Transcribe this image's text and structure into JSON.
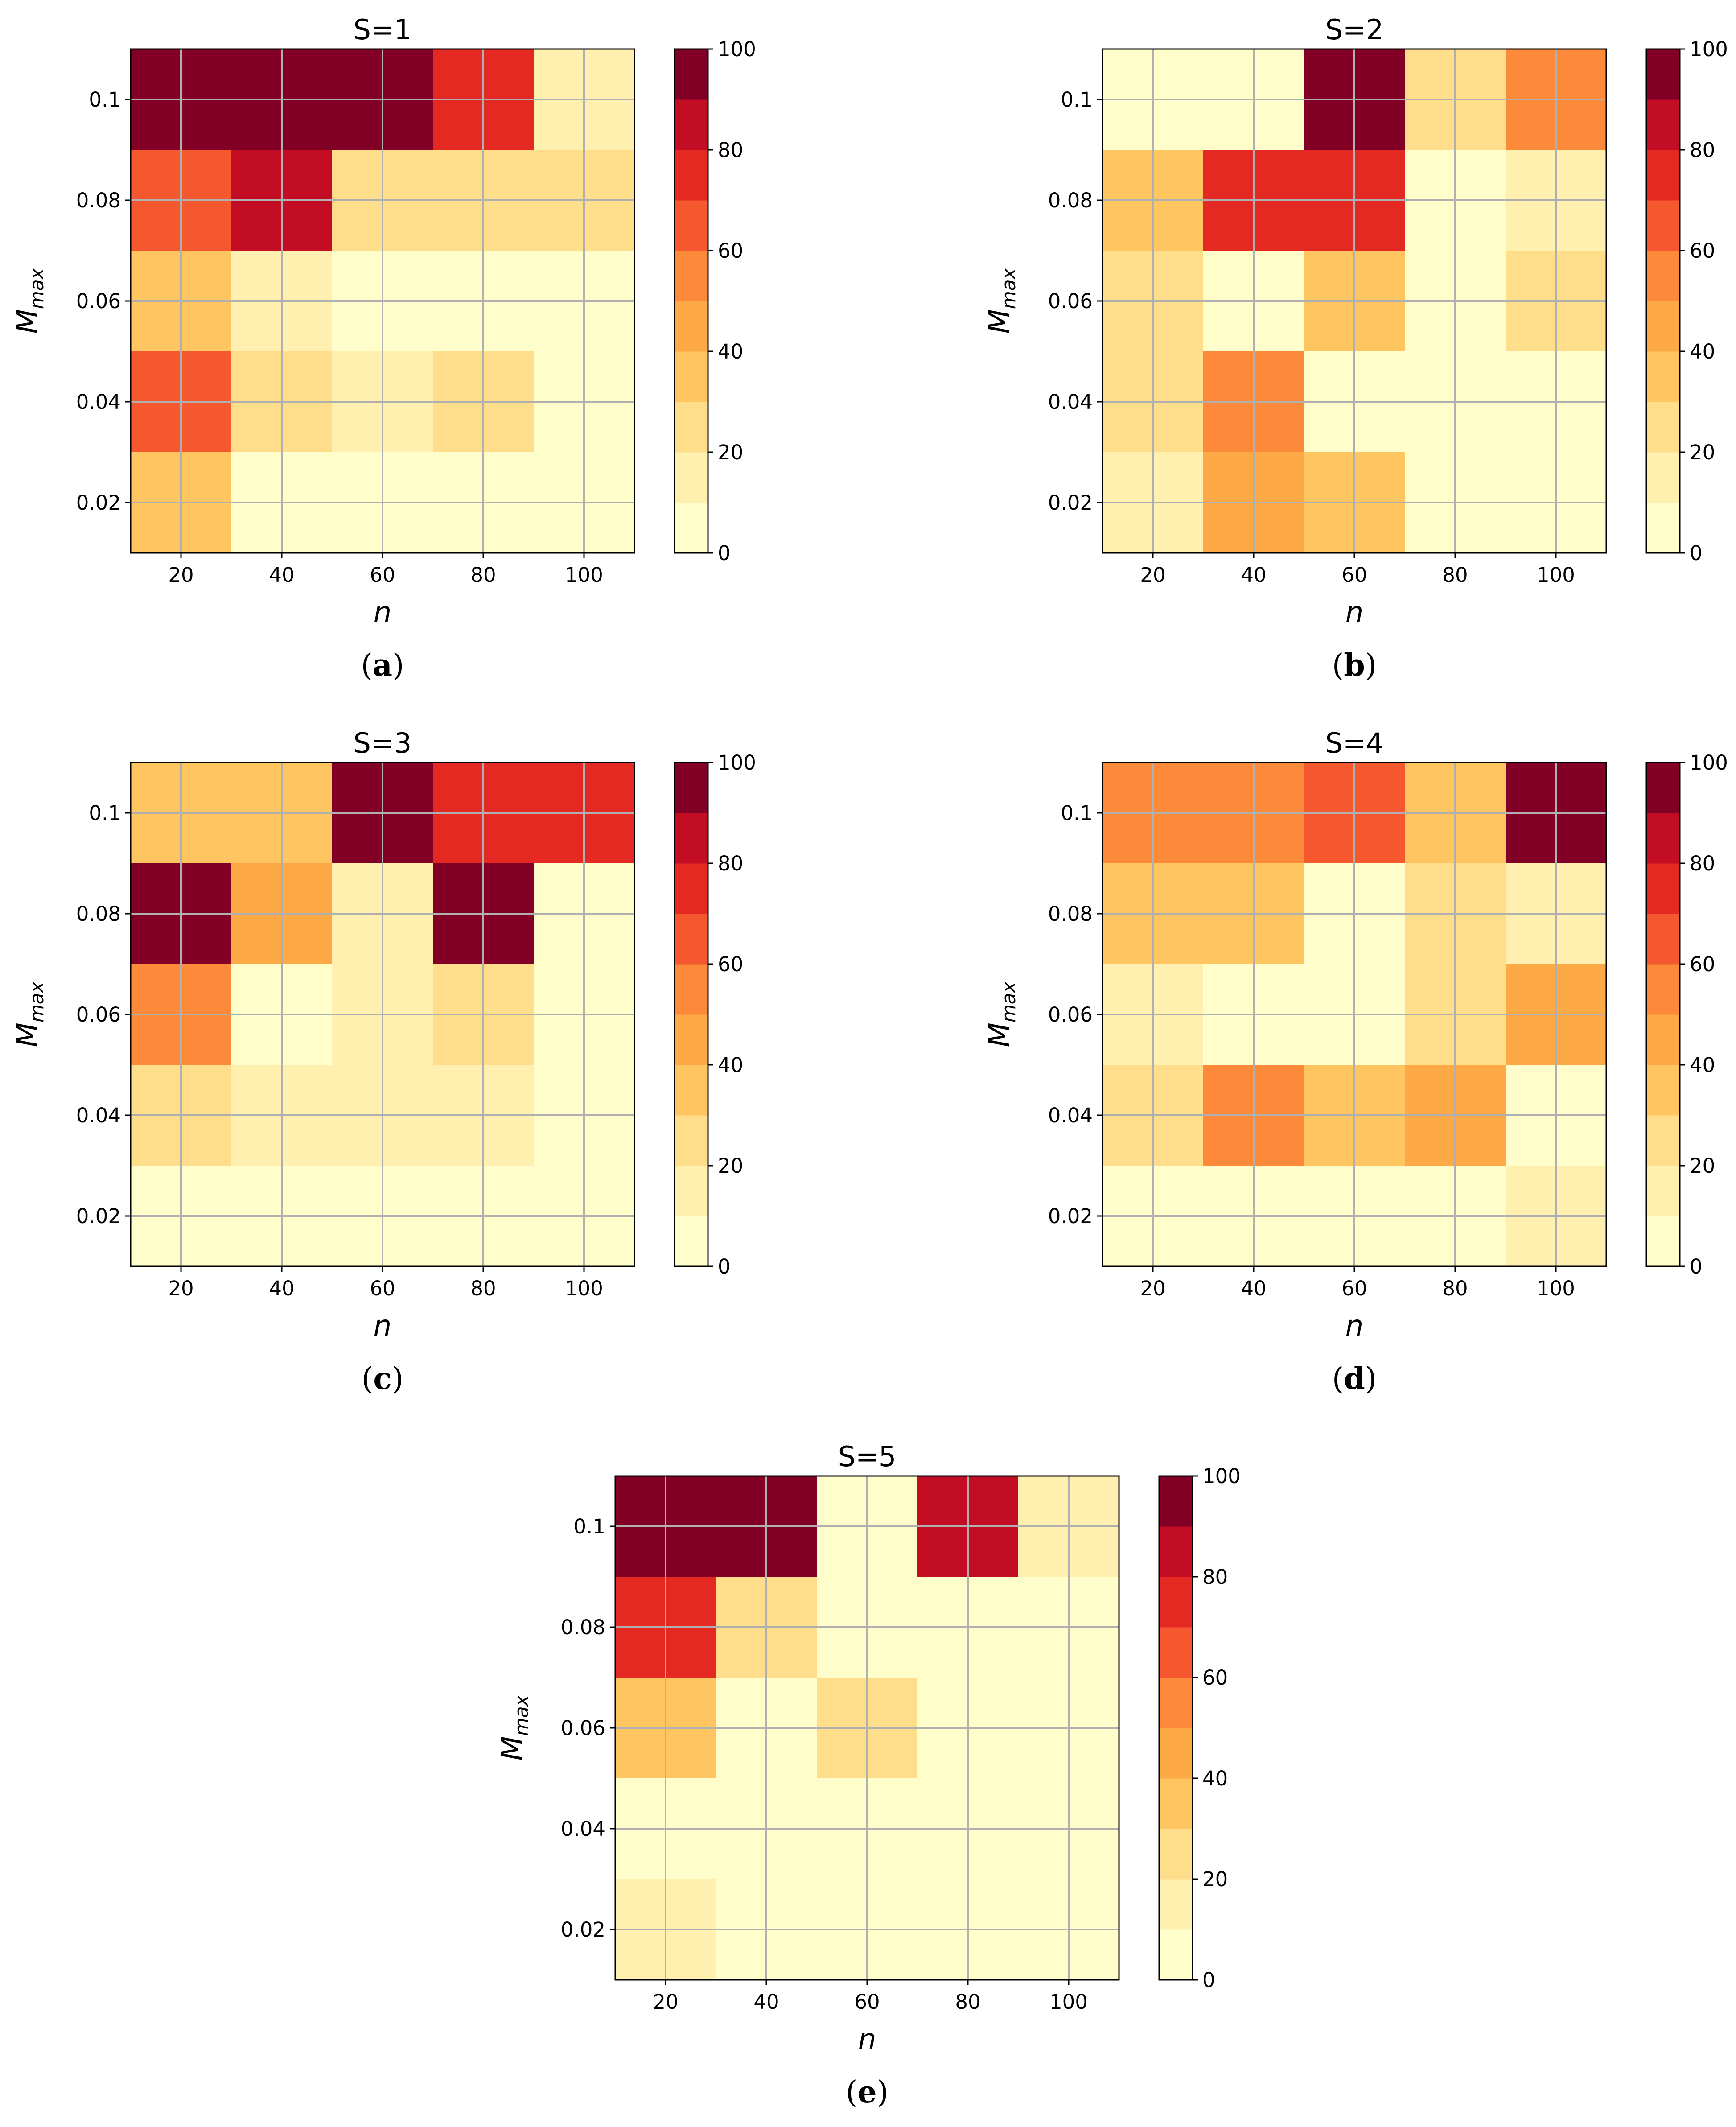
{
  "colormap": {
    "name": "YlOrRd",
    "levels": [
      0,
      10,
      20,
      30,
      40,
      50,
      60,
      70,
      80,
      90,
      100
    ],
    "colors": [
      "#fffecb",
      "#fff0b0",
      "#fedd8b",
      "#fec560",
      "#fdaa46",
      "#fc8a3a",
      "#f5582e",
      "#e32922",
      "#c20d25",
      "#820026"
    ]
  },
  "frame_color": "#000000",
  "grid_color": "#b0b0b0",
  "chart_data": [
    {
      "type": "heatmap",
      "title": "S=1",
      "caption": {
        "open": "(",
        "letter": "a",
        "close": ")"
      },
      "xlabel": "n",
      "ylabel": {
        "main": "M",
        "sub": "max"
      },
      "x_centers": [
        20,
        40,
        60,
        80,
        100
      ],
      "y_centers": [
        0.1,
        0.08,
        0.06,
        0.04,
        0.02
      ],
      "xlim": [
        10,
        110
      ],
      "ylim": [
        0.01,
        0.11
      ],
      "x_ticks": [
        20,
        40,
        60,
        80,
        100
      ],
      "x_tick_labels": [
        "20",
        "40",
        "60",
        "80",
        "100"
      ],
      "y_ticks": [
        0.1,
        0.08,
        0.06,
        0.04,
        0.02
      ],
      "y_tick_labels": [
        "0.1",
        "0.08",
        "0.06",
        "0.04",
        "0.02"
      ],
      "colorbar_ticks": [
        0,
        20,
        40,
        60,
        80,
        100
      ],
      "colorbar_tick_labels": [
        "0",
        "20",
        "40",
        "60",
        "80",
        "100"
      ],
      "grid": true,
      "values": [
        [
          95,
          95,
          95,
          75,
          15
        ],
        [
          65,
          85,
          25,
          25,
          25
        ],
        [
          35,
          15,
          5,
          5,
          5
        ],
        [
          65,
          25,
          15,
          25,
          5
        ],
        [
          35,
          5,
          5,
          5,
          5
        ]
      ]
    },
    {
      "type": "heatmap",
      "title": "S=2",
      "caption": {
        "open": "(",
        "letter": "b",
        "close": ")"
      },
      "xlabel": "n",
      "ylabel": {
        "main": "M",
        "sub": "max"
      },
      "x_centers": [
        20,
        40,
        60,
        80,
        100
      ],
      "y_centers": [
        0.1,
        0.08,
        0.06,
        0.04,
        0.02
      ],
      "xlim": [
        10,
        110
      ],
      "ylim": [
        0.01,
        0.11
      ],
      "x_ticks": [
        20,
        40,
        60,
        80,
        100
      ],
      "x_tick_labels": [
        "20",
        "40",
        "60",
        "80",
        "100"
      ],
      "y_ticks": [
        0.1,
        0.08,
        0.06,
        0.04,
        0.02
      ],
      "y_tick_labels": [
        "0.1",
        "0.08",
        "0.06",
        "0.04",
        "0.02"
      ],
      "colorbar_ticks": [
        0,
        20,
        40,
        60,
        80,
        100
      ],
      "colorbar_tick_labels": [
        "0",
        "20",
        "40",
        "60",
        "80",
        "100"
      ],
      "grid": true,
      "values": [
        [
          5,
          5,
          95,
          25,
          55
        ],
        [
          35,
          75,
          75,
          5,
          15
        ],
        [
          25,
          5,
          35,
          5,
          25
        ],
        [
          25,
          55,
          5,
          5,
          5
        ],
        [
          15,
          45,
          35,
          5,
          5
        ]
      ]
    },
    {
      "type": "heatmap",
      "title": "S=3",
      "caption": {
        "open": "(",
        "letter": "c",
        "close": ")"
      },
      "xlabel": "n",
      "ylabel": {
        "main": "M",
        "sub": "max"
      },
      "x_centers": [
        20,
        40,
        60,
        80,
        100
      ],
      "y_centers": [
        0.1,
        0.08,
        0.06,
        0.04,
        0.02
      ],
      "xlim": [
        10,
        110
      ],
      "ylim": [
        0.01,
        0.11
      ],
      "x_ticks": [
        20,
        40,
        60,
        80,
        100
      ],
      "x_tick_labels": [
        "20",
        "40",
        "60",
        "80",
        "100"
      ],
      "y_ticks": [
        0.1,
        0.08,
        0.06,
        0.04,
        0.02
      ],
      "y_tick_labels": [
        "0.1",
        "0.08",
        "0.06",
        "0.04",
        "0.02"
      ],
      "colorbar_ticks": [
        0,
        20,
        40,
        60,
        80,
        100
      ],
      "colorbar_tick_labels": [
        "0",
        "20",
        "40",
        "60",
        "80",
        "100"
      ],
      "grid": true,
      "values": [
        [
          35,
          35,
          95,
          75,
          75
        ],
        [
          95,
          45,
          15,
          95,
          5
        ],
        [
          55,
          5,
          15,
          25,
          5
        ],
        [
          25,
          15,
          15,
          15,
          5
        ],
        [
          5,
          5,
          5,
          5,
          5
        ]
      ]
    },
    {
      "type": "heatmap",
      "title": "S=4",
      "caption": {
        "open": "(",
        "letter": "d",
        "close": ")"
      },
      "xlabel": "n",
      "ylabel": {
        "main": "M",
        "sub": "max"
      },
      "x_centers": [
        20,
        40,
        60,
        80,
        100
      ],
      "y_centers": [
        0.1,
        0.08,
        0.06,
        0.04,
        0.02
      ],
      "xlim": [
        10,
        110
      ],
      "ylim": [
        0.01,
        0.11
      ],
      "x_ticks": [
        20,
        40,
        60,
        80,
        100
      ],
      "x_tick_labels": [
        "20",
        "40",
        "60",
        "80",
        "100"
      ],
      "y_ticks": [
        0.1,
        0.08,
        0.06,
        0.04,
        0.02
      ],
      "y_tick_labels": [
        "0.1",
        "0.08",
        "0.06",
        "0.04",
        "0.02"
      ],
      "colorbar_ticks": [
        0,
        20,
        40,
        60,
        80,
        100
      ],
      "colorbar_tick_labels": [
        "0",
        "20",
        "40",
        "60",
        "80",
        "100"
      ],
      "grid": true,
      "values": [
        [
          55,
          55,
          65,
          35,
          95
        ],
        [
          35,
          35,
          5,
          25,
          15
        ],
        [
          15,
          5,
          5,
          25,
          45
        ],
        [
          25,
          55,
          35,
          45,
          5
        ],
        [
          5,
          5,
          5,
          5,
          15
        ]
      ]
    },
    {
      "type": "heatmap",
      "title": "S=5",
      "caption": {
        "open": "(",
        "letter": "e",
        "close": ")"
      },
      "xlabel": "n",
      "ylabel": {
        "main": "M",
        "sub": "max"
      },
      "x_centers": [
        20,
        40,
        60,
        80,
        100
      ],
      "y_centers": [
        0.1,
        0.08,
        0.06,
        0.04,
        0.02
      ],
      "xlim": [
        10,
        110
      ],
      "ylim": [
        0.01,
        0.11
      ],
      "x_ticks": [
        20,
        40,
        60,
        80,
        100
      ],
      "x_tick_labels": [
        "20",
        "40",
        "60",
        "80",
        "100"
      ],
      "y_ticks": [
        0.1,
        0.08,
        0.06,
        0.04,
        0.02
      ],
      "y_tick_labels": [
        "0.1",
        "0.08",
        "0.06",
        "0.04",
        "0.02"
      ],
      "colorbar_ticks": [
        0,
        20,
        40,
        60,
        80,
        100
      ],
      "colorbar_tick_labels": [
        "0",
        "20",
        "40",
        "60",
        "80",
        "100"
      ],
      "grid": true,
      "values": [
        [
          95,
          95,
          5,
          85,
          15
        ],
        [
          75,
          25,
          5,
          5,
          5
        ],
        [
          35,
          5,
          25,
          5,
          5
        ],
        [
          5,
          5,
          5,
          5,
          5
        ],
        [
          15,
          5,
          5,
          5,
          5
        ]
      ]
    }
  ]
}
